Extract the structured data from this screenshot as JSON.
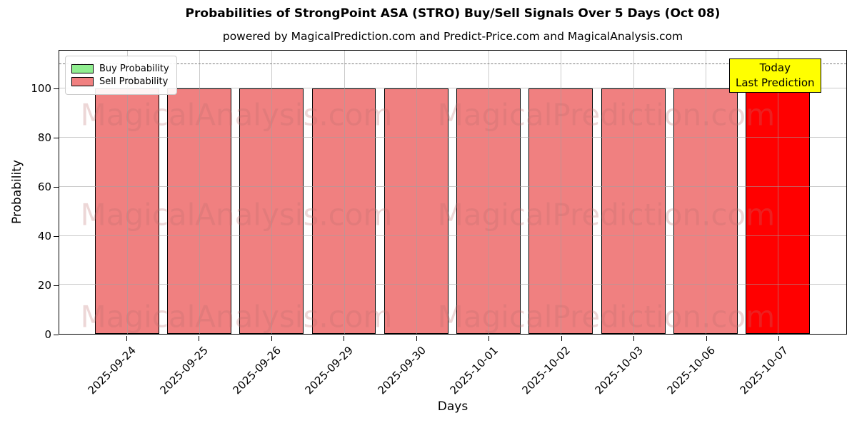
{
  "title": "Probabilities of StrongPoint ASA (STRO) Buy/Sell Signals Over 5 Days (Oct 08)",
  "subtitle": "powered by MagicalPrediction.com and Predict-Price.com and MagicalAnalysis.com",
  "legend": {
    "items": [
      {
        "label": "Buy Probability",
        "color": "#90EE90"
      },
      {
        "label": "Sell Probability",
        "color": "#F08080"
      }
    ]
  },
  "annotation": {
    "line1": "Today",
    "line2": "Last Prediction",
    "bg_color": "#FFFF00"
  },
  "watermarks": {
    "left_text": "MagicalAnalysis.com",
    "right_text": "MagicalPrediction.com"
  },
  "chart_data": {
    "type": "bar",
    "title": "Probabilities of StrongPoint ASA (STRO) Buy/Sell Signals Over 5 Days (Oct 08)",
    "xlabel": "Days",
    "ylabel": "Probability",
    "categories": [
      "2025-09-24",
      "2025-09-25",
      "2025-09-26",
      "2025-09-29",
      "2025-09-30",
      "2025-10-01",
      "2025-10-02",
      "2025-10-03",
      "2025-10-06",
      "2025-10-07"
    ],
    "series": [
      {
        "name": "Buy Probability",
        "color": "#90EE90",
        "values": [
          0,
          0,
          0,
          0,
          0,
          0,
          0,
          0,
          0,
          0
        ]
      },
      {
        "name": "Sell Probability",
        "color": "#F08080",
        "values": [
          100,
          100,
          100,
          100,
          100,
          100,
          100,
          100,
          100,
          100
        ]
      }
    ],
    "bar_colors": [
      "#F08080",
      "#F08080",
      "#F08080",
      "#F08080",
      "#F08080",
      "#F08080",
      "#F08080",
      "#F08080",
      "#F08080",
      "#FF0000"
    ],
    "bar_edge_color": "#000000",
    "y_ticks": [
      0,
      20,
      40,
      60,
      80,
      100
    ],
    "ylim": [
      0,
      115.5
    ],
    "dashed_line_y": 110,
    "grid": true,
    "legend_position": "upper left",
    "annotation_text": "Today Last Prediction"
  }
}
